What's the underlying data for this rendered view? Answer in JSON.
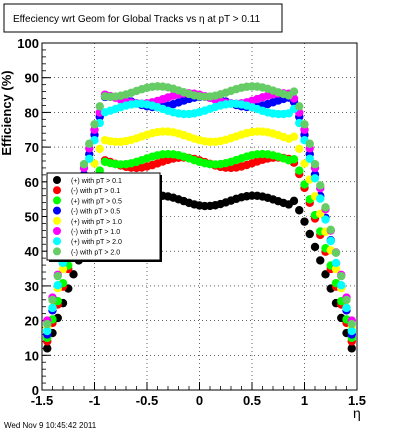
{
  "chart_data": {
    "type": "scatter",
    "title": "Effeciency wrt Geom for Global Tracks vs    η at pT > 0.11",
    "xlabel": "η",
    "ylabel": "Efficiency (%)",
    "xlim": [
      -1.5,
      1.5
    ],
    "ylim": [
      0,
      100
    ],
    "x_ticks": [
      "-1.5",
      "-1",
      "-0.5",
      "0",
      "0.5",
      "1",
      "1.5"
    ],
    "y_ticks": [
      "0",
      "10",
      "20",
      "30",
      "40",
      "50",
      "60",
      "70",
      "80",
      "90",
      "100"
    ],
    "grid": true,
    "legend_position": "middle-left",
    "footer": "Wed Nov  9 10:45:42 2011",
    "series": [
      {
        "name": "(+) with pT > 0.1",
        "color": "#000000",
        "plateau": 54.5,
        "edge": 12
      },
      {
        "name": "(-) with pT > 0.1",
        "color": "#ff0000",
        "plateau": 65.5,
        "edge": 14
      },
      {
        "name": "(+) with pT > 0.5",
        "color": "#00ff00",
        "plateau": 66.5,
        "edge": 15
      },
      {
        "name": "(-) with pT > 0.5",
        "color": "#0000ff",
        "plateau": 83,
        "edge": 16
      },
      {
        "name": "(+) with pT > 1.0",
        "color": "#ffff00",
        "plateau": 73,
        "edge": 18
      },
      {
        "name": "(-) with pT > 1.0",
        "color": "#ff00ff",
        "plateau": 84,
        "edge": 20
      },
      {
        "name": "(+) with pT > 2.0",
        "color": "#00ffff",
        "plateau": 81,
        "edge": 17
      },
      {
        "name": "(-) with pT > 2.0",
        "color": "#66cc66",
        "plateau": 86,
        "edge": 19
      }
    ]
  }
}
